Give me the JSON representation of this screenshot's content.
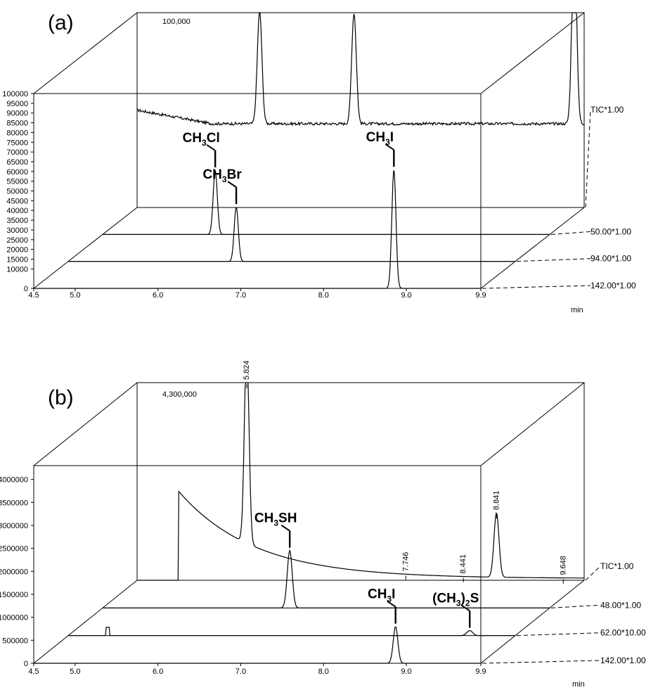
{
  "chart_data": [
    {
      "type": "line",
      "panel_label": "(a)",
      "back_label": "100,000",
      "xlabel": "min",
      "x_ticks": [
        "4.5",
        "5.0",
        "6.0",
        "7.0",
        "8.0",
        "9.0",
        "9.9"
      ],
      "xlim": [
        4.5,
        9.9
      ],
      "ylim": [
        0,
        100000
      ],
      "y_ticks": [
        "0",
        "10000",
        "15000",
        "20000",
        "25000",
        "30000",
        "35000",
        "40000",
        "45000",
        "50000",
        "55000",
        "60000",
        "65000",
        "70000",
        "75000",
        "80000",
        "85000",
        "90000",
        "95000",
        "100000"
      ],
      "y_tick_values": [
        0,
        10000,
        15000,
        20000,
        25000,
        30000,
        35000,
        40000,
        45000,
        50000,
        55000,
        60000,
        65000,
        70000,
        75000,
        80000,
        85000,
        90000,
        95000,
        100000
      ],
      "series": [
        {
          "name": "TIC*1.00",
          "baseline": 43000,
          "baseline_start": 50000,
          "noise": true,
          "peaks": [
            {
              "x": 5.98,
              "height": 58000,
              "width": 0.028
            },
            {
              "x": 7.12,
              "height": 57000,
              "width": 0.028
            },
            {
              "x": 9.78,
              "height": 100000,
              "width": 0.028
            }
          ]
        },
        {
          "name": "50.00*1.00",
          "baseline": 0,
          "peaks": [
            {
              "x": 5.86,
              "height": 33000,
              "width": 0.025
            }
          ]
        },
        {
          "name": "94.00*1.00",
          "baseline": 0,
          "peaks": [
            {
              "x": 6.53,
              "height": 28000,
              "width": 0.025
            }
          ]
        },
        {
          "name": "142.00*1.00",
          "baseline": 0,
          "peaks": [
            {
              "x": 8.85,
              "height": 61000,
              "width": 0.025
            }
          ]
        }
      ],
      "annotations": [
        {
          "main": "CH",
          "sub": "3",
          "tail": "Cl",
          "series": 1,
          "x": 5.86
        },
        {
          "main": "CH",
          "sub": "3",
          "tail": "Br",
          "series": 2,
          "x": 6.53
        },
        {
          "main": "CH",
          "sub": "3",
          "tail": "I",
          "series": 3,
          "x": 8.85
        }
      ]
    },
    {
      "type": "line",
      "panel_label": "(b)",
      "back_label": "4,300,000",
      "xlabel": "min",
      "x_ticks": [
        "4.5",
        "5.0",
        "6.0",
        "7.0",
        "8.0",
        "9.0",
        "9.9"
      ],
      "xlim": [
        4.5,
        9.9
      ],
      "ylim": [
        0,
        4300000
      ],
      "y_ticks": [
        "0",
        "500000",
        "1000000",
        "1500000",
        "2000000",
        "2500000",
        "3000000",
        "3500000",
        "4000000"
      ],
      "y_tick_values": [
        0,
        500000,
        1000000,
        1500000,
        2000000,
        2500000,
        3000000,
        3500000,
        4000000
      ],
      "series": [
        {
          "name": "TIC*1.00",
          "baseline": 0,
          "decay": {
            "start": 5.0,
            "amp": 2000000,
            "rate": 1.1
          },
          "peaks": [
            {
              "x": 5.824,
              "height": 4300000,
              "width": 0.028
            },
            {
              "x": 8.841,
              "height": 1400000,
              "width": 0.03
            }
          ]
        },
        {
          "name": "48.00*1.00",
          "baseline": 0,
          "peaks": [
            {
              "x": 6.76,
              "height": 1250000,
              "width": 0.03
            }
          ]
        },
        {
          "name": "62.00*10.00",
          "baseline": 0,
          "start_spike": true,
          "peaks": [
            {
              "x": 9.35,
              "height": 110000,
              "width": 0.035
            }
          ]
        },
        {
          "name": "142.00*1.00",
          "baseline": 0,
          "peaks": [
            {
              "x": 8.87,
              "height": 800000,
              "width": 0.028
            }
          ]
        }
      ],
      "peak_labels": [
        "5.824",
        "7.746",
        "8.441",
        "8.841",
        "9.648"
      ],
      "annotations": [
        {
          "main": "CH",
          "sub": "3",
          "tail": "SH",
          "series": 1,
          "x": 6.76
        },
        {
          "main": "CH",
          "sub": "3",
          "tail": "I",
          "series": 3,
          "x": 8.87
        },
        {
          "main": "(CH",
          "sub": "3",
          "tail": ")",
          "sub2": "2",
          "tail2": "S",
          "series": 2,
          "x": 9.35
        }
      ]
    }
  ]
}
